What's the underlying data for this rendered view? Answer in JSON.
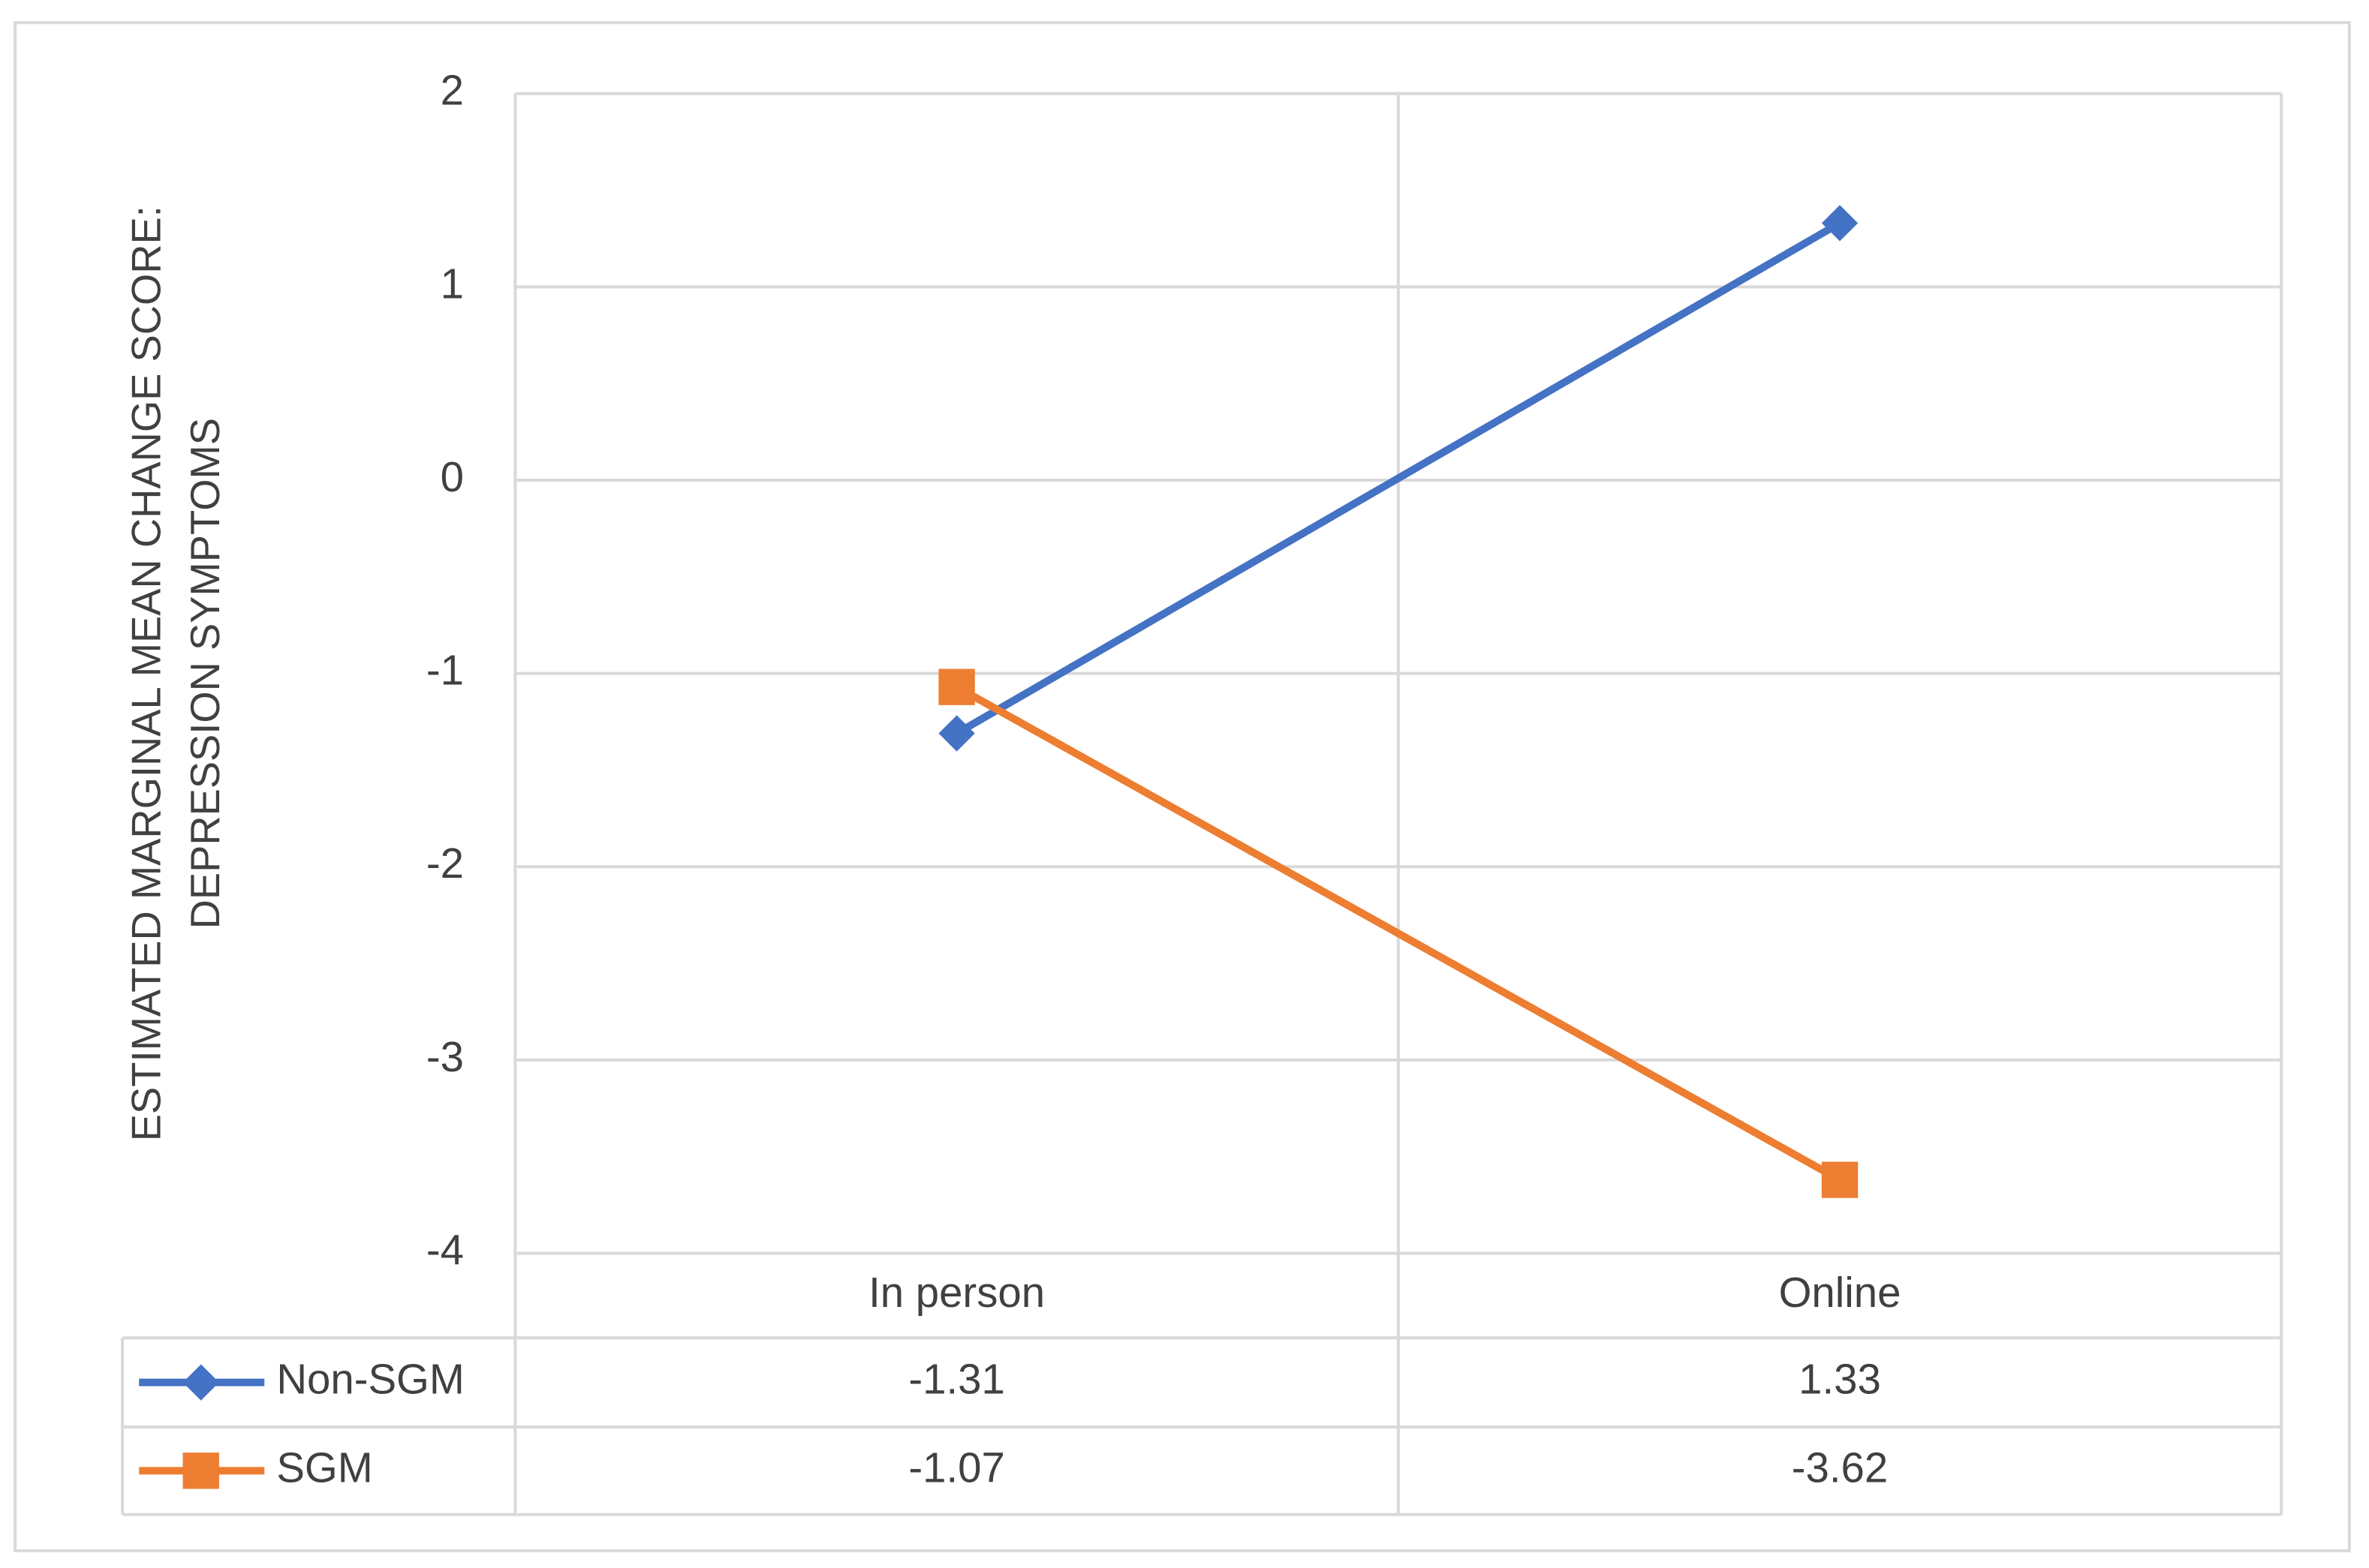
{
  "chart_data": {
    "type": "line",
    "y_label": "ESTIMATED MARGINAL MEAN CHANGE SCORE: DEPRESSION SYMPTOMS",
    "categories": [
      "In person",
      "Online"
    ],
    "series": [
      {
        "name": "Non-SGM",
        "color": "#4472c4",
        "marker": "diamond",
        "values": [
          -1.31,
          1.33
        ]
      },
      {
        "name": "SGM",
        "color": "#ed7d31",
        "marker": "square",
        "values": [
          -1.07,
          -3.62
        ]
      }
    ],
    "ylim": [
      -4,
      2
    ],
    "yticks": [
      -4,
      -3,
      -2,
      -1,
      0,
      1,
      2
    ],
    "grid": true,
    "data_table": true
  }
}
